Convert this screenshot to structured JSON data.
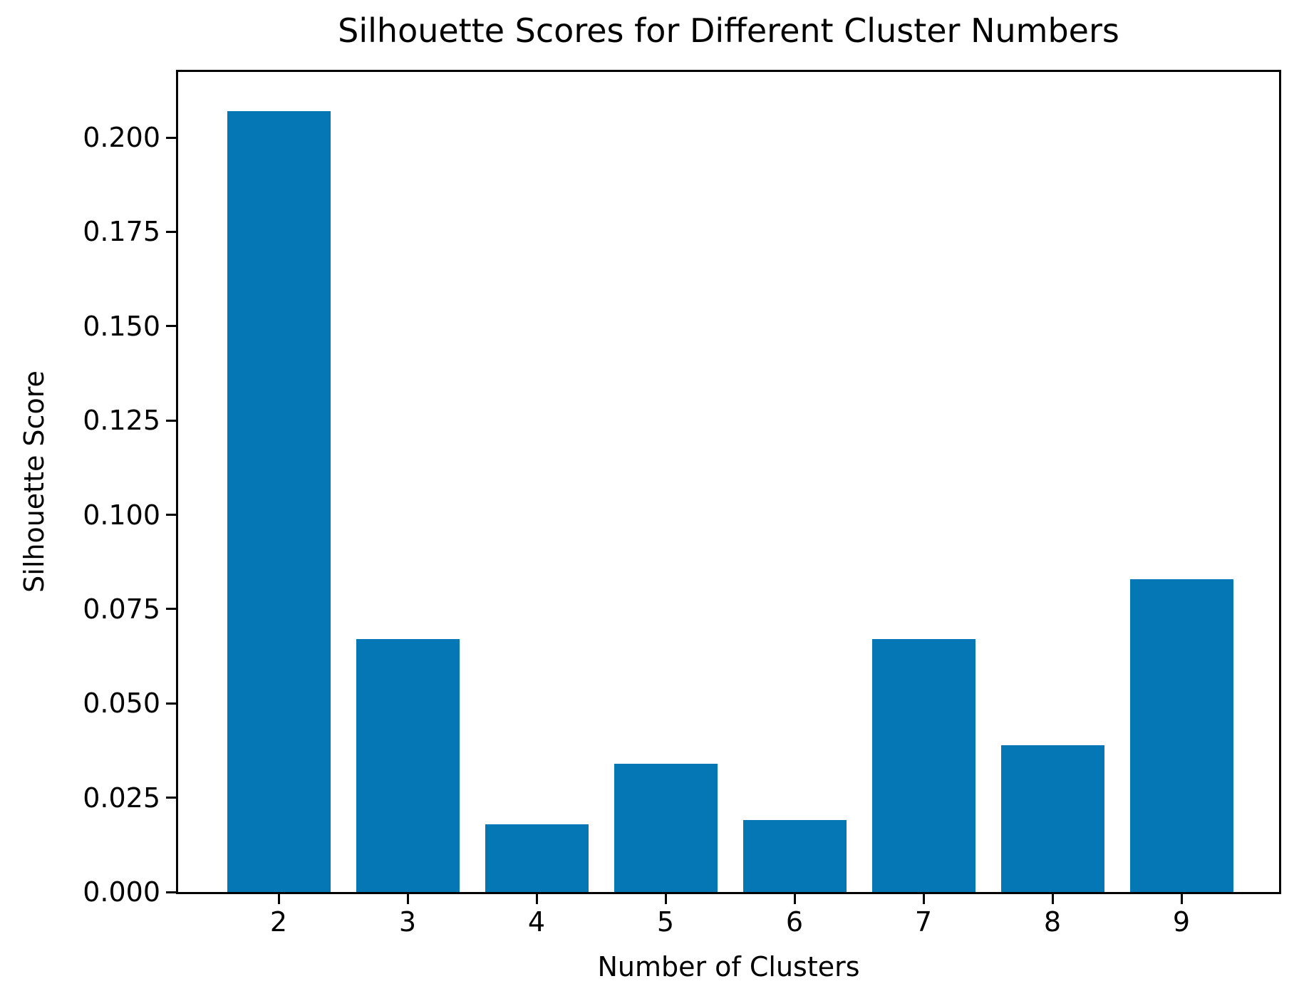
{
  "chart_data": {
    "type": "bar",
    "title": "Silhouette Scores for Different Cluster Numbers",
    "xlabel": "Number of Clusters",
    "ylabel": "Silhouette Score",
    "categories": [
      "2",
      "3",
      "4",
      "5",
      "6",
      "7",
      "8",
      "9"
    ],
    "values": [
      0.207,
      0.067,
      0.018,
      0.034,
      0.019,
      0.067,
      0.039,
      0.083
    ],
    "ytick_labels": [
      "0.000",
      "0.025",
      "0.050",
      "0.075",
      "0.100",
      "0.125",
      "0.150",
      "0.175",
      "0.200"
    ],
    "ytick_values": [
      0,
      0.025,
      0.05,
      0.075,
      0.1,
      0.125,
      0.15,
      0.175,
      0.2
    ],
    "ylim": [
      0,
      0.2174
    ],
    "grid": false,
    "legend": "none",
    "bar_color": "#0677b5",
    "axis_color": "#000000",
    "text_color": "#000000",
    "background_color": "#ffffff"
  }
}
